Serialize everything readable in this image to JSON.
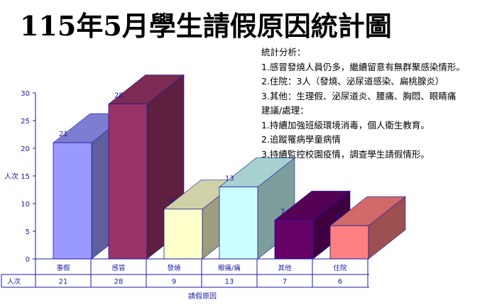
{
  "title": "115年5月學生請假原因統計圖",
  "analysis": {
    "heading": "統計分析：",
    "lines": [
      "1.感冒發燒人員仍多，繼續留意有無群聚感染情形。",
      "2.住院：3人（發燒、泌尿道感染、扁桃腺炎）",
      "3.其他：生理假、泌尿道炎、腰痛、胸悶、眼睛痛"
    ],
    "action_heading": "建議/處理：",
    "actions": [
      "1.持續加強班級環境消毒，個人衛生教育。",
      "2.追蹤罹病學童病情",
      "3.持續監控校園疫情，調查學生請假情形。"
    ]
  },
  "chart_data": {
    "type": "bar",
    "categories": [
      "事假",
      "感冒",
      "發燒",
      "眼痛/痛",
      "其他",
      "住院"
    ],
    "values": [
      21,
      28,
      9,
      13,
      7,
      6
    ],
    "ylabel": "人次",
    "xlabel": "請假原因",
    "ylim": [
      0,
      30
    ],
    "yticks": [
      0,
      5,
      10,
      15,
      20,
      25,
      30
    ],
    "table_row_label": "人次",
    "colors": [
      "#9999ff",
      "#993366",
      "#ffffcc",
      "#ccffff",
      "#660066",
      "#ff8080"
    ]
  }
}
